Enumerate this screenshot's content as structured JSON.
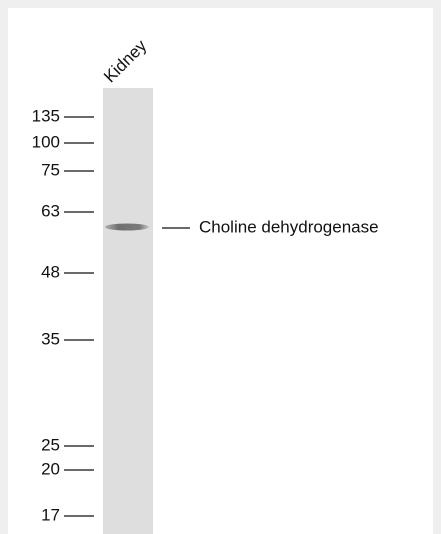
{
  "lane_label": "Kidney",
  "markers": [
    "135",
    "100",
    "75",
    "63",
    "48",
    "35",
    "25",
    "20",
    "17"
  ],
  "band_label": "Choline dehydrogenase"
}
